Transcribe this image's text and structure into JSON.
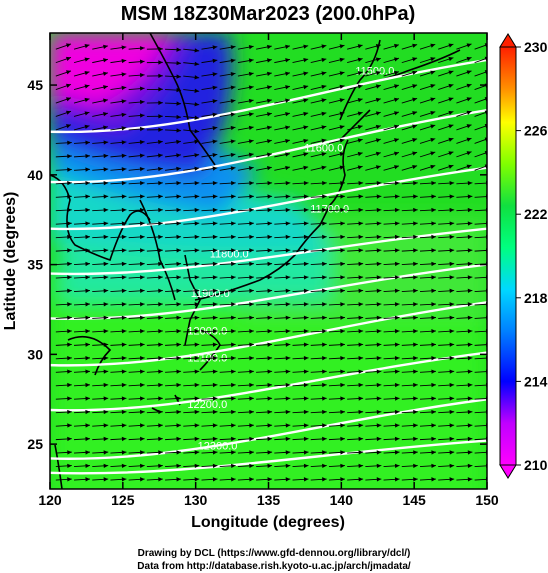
{
  "figure": {
    "title": "MSM 18Z30Mar2023 (200.0hPa)",
    "credit_line1": "Drawing by DCL (https://www.gfd-dennou.org/library/dcl/)",
    "credit_line2": "Data from http://database.rish.kyoto-u.ac.jp/arch/jmadata/"
  },
  "chart_data": {
    "type": "heatmap",
    "title": "MSM 18Z30Mar2023 (200.0hPa)",
    "xlabel": "Longitude (degrees)",
    "ylabel": "Latitude  (degrees)",
    "xlim": [
      120,
      150
    ],
    "ylim": [
      22.5,
      47.9
    ],
    "x_ticks": [
      120,
      125,
      130,
      135,
      140,
      145,
      150
    ],
    "y_ticks": [
      25,
      30,
      35,
      40,
      45
    ],
    "colorbar": {
      "range": [
        210,
        230
      ],
      "ticks": [
        210,
        214,
        218,
        222,
        226,
        230
      ],
      "colors": [
        "#ff00ff",
        "#0000ff",
        "#00b4ff",
        "#00ff80",
        "#90ff00",
        "#ffff00",
        "#ff8000",
        "#ff2000"
      ]
    },
    "temperature_regions": [
      {
        "region": "northwest corner (120-127E, 44-48N)",
        "value": 210
      },
      {
        "region": "north of 42N, west of 130E",
        "value": 213
      },
      {
        "region": "band 38-42N",
        "value": 217
      },
      {
        "region": "band 34-38N",
        "value": 219
      },
      {
        "region": "south of 33N",
        "value": 222
      }
    ],
    "contours": [
      {
        "label": "11500.0",
        "lat_west": 42.4,
        "lat_east": 46.4,
        "label_lon": 142.3,
        "label_lat": 45.6
      },
      {
        "label": "11600.0",
        "lat_west": 39.6,
        "lat_east": 43.6,
        "label_lon": 138.8,
        "label_lat": 41.3
      },
      {
        "label": "11700.0",
        "lat_west": 37.0,
        "lat_east": 40.4,
        "label_lon": 139.2,
        "label_lat": 37.9
      },
      {
        "label": "11800.0",
        "lat_west": 34.5,
        "lat_east": 37.0,
        "label_lon": 132.3,
        "label_lat": 35.4
      },
      {
        "label": "11900.0",
        "lat_west": 32.0,
        "lat_east": 35.0,
        "label_lon": 131.0,
        "label_lat": 33.2
      },
      {
        "label": "12000.0",
        "lat_west": 29.4,
        "lat_east": 32.9,
        "label_lon": 130.8,
        "label_lat": 31.1
      },
      {
        "label": "12100.0",
        "lat_west": 26.9,
        "lat_east": 30.1,
        "label_lon": 130.8,
        "label_lat": 29.6
      },
      {
        "label": "12200.0",
        "lat_west": 24.2,
        "lat_east": 27.5,
        "label_lon": 130.8,
        "label_lat": 27.0
      },
      {
        "label": "12300.0",
        "lat_west": 23.4,
        "lat_east": 25.2,
        "label_lon": 131.5,
        "label_lat": 24.7
      }
    ],
    "wind_vectors": "uniform grid of arrows pointing eastward to east-north-east"
  }
}
